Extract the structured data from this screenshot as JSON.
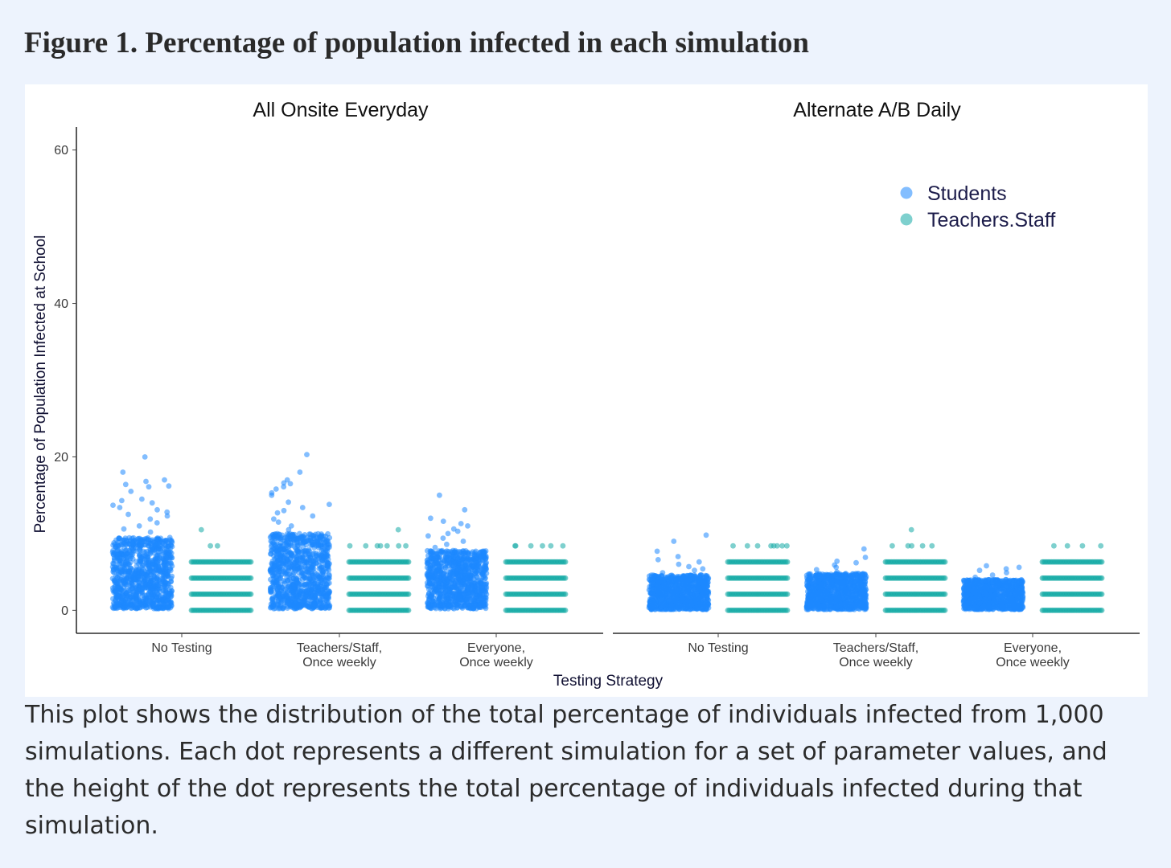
{
  "figure": {
    "title": "Figure 1. Percentage of population infected in each simulation",
    "caption": "This plot shows the distribution of the total percentage of individuals infected from 1,000 simulations. Each dot represents a different simulation for a set of parameter values, and the height of the dot represents the total percentage of individuals infected during that simulation."
  },
  "chart_data": {
    "type": "scatter",
    "style": "jittered strip plot",
    "ylabel": "Percentage of Population Infected at School",
    "xlabel": "Testing Strategy",
    "ylim": [
      -3,
      63
    ],
    "y_ticks": [
      0,
      20,
      40,
      60
    ],
    "grid": false,
    "legend_position": "top-right",
    "points_per_group": 1000,
    "series": [
      {
        "name": "Students",
        "color": "#1e88ff"
      },
      {
        "name": "Teachers.Staff",
        "color": "#14aaa5"
      }
    ],
    "categories": [
      [
        "No Testing"
      ],
      [
        "Teachers/Staff,",
        "Once weekly"
      ],
      [
        "Everyone,",
        "Once weekly"
      ]
    ],
    "facets": [
      {
        "title": "All Onsite Everyday",
        "groups": [
          {
            "category": 0,
            "students": {
              "dense_min": 0.2,
              "dense_max": 9.5,
              "outliers": [
                10.2,
                10.6,
                11.0,
                11.4,
                11.9,
                12.3,
                12.5,
                12.8,
                13.1,
                13.4,
                13.7,
                14.0,
                14.3,
                14.5,
                15.5,
                16.1,
                16.2,
                16.4,
                16.8,
                17.0,
                18.0,
                20.0
              ]
            },
            "teachers_staff": {
              "levels": [
                0,
                2.1,
                4.2,
                6.3
              ],
              "outliers": [
                8.4,
                8.4,
                10.5
              ]
            }
          },
          {
            "category": 1,
            "students": {
              "dense_min": 0.2,
              "dense_max": 10.0,
              "outliers": [
                10.5,
                11.0,
                11.5,
                11.9,
                12.3,
                12.7,
                13.0,
                13.4,
                13.8,
                14.1,
                15.0,
                15.3,
                15.8,
                16.1,
                16.5,
                16.6,
                17.0,
                18.0,
                20.3
              ]
            },
            "teachers_staff": {
              "levels": [
                0,
                2.1,
                4.2,
                6.3
              ],
              "outliers": [
                8.4,
                8.4,
                8.4,
                8.4,
                8.4,
                8.4,
                8.4,
                10.5
              ]
            }
          },
          {
            "category": 2,
            "students": {
              "dense_min": 0.2,
              "dense_max": 7.8,
              "outliers": [
                8.2,
                8.6,
                9.0,
                9.4,
                9.7,
                10.0,
                10.3,
                10.6,
                11.0,
                11.3,
                11.6,
                12.0,
                13.1,
                15.0
              ]
            },
            "teachers_staff": {
              "levels": [
                0,
                2.1,
                4.2,
                6.3
              ],
              "outliers": [
                8.4,
                8.4,
                8.4,
                8.4,
                8.4,
                8.4
              ]
            }
          }
        ]
      },
      {
        "title": "Alternate A/B Daily",
        "groups": [
          {
            "category": 0,
            "students": {
              "dense_min": 0.1,
              "dense_max": 4.6,
              "outliers": [
                4.9,
                5.2,
                5.4,
                5.7,
                6.0,
                6.3,
                6.6,
                7.0,
                7.7,
                9.0,
                9.8
              ]
            },
            "teachers_staff": {
              "levels": [
                0,
                2.1,
                4.2,
                6.3
              ],
              "outliers": [
                8.4,
                8.4,
                8.4,
                8.4,
                8.4,
                8.4,
                8.4,
                8.4
              ]
            }
          },
          {
            "category": 1,
            "students": {
              "dense_min": 0.1,
              "dense_max": 4.8,
              "outliers": [
                5.0,
                5.3,
                5.6,
                5.9,
                6.2,
                6.4,
                6.9,
                8.0
              ]
            },
            "teachers_staff": {
              "levels": [
                0,
                2.1,
                4.2,
                6.3
              ],
              "outliers": [
                8.4,
                8.4,
                8.4,
                8.4,
                8.4,
                10.5
              ]
            }
          },
          {
            "category": 2,
            "students": {
              "dense_min": 0.1,
              "dense_max": 4.0,
              "outliers": [
                4.3,
                4.6,
                4.9,
                5.2,
                5.4,
                5.6,
                5.8
              ]
            },
            "teachers_staff": {
              "levels": [
                0,
                2.1,
                4.2,
                6.3
              ],
              "outliers": [
                8.4,
                8.4,
                8.4,
                8.4
              ]
            }
          }
        ]
      }
    ]
  }
}
